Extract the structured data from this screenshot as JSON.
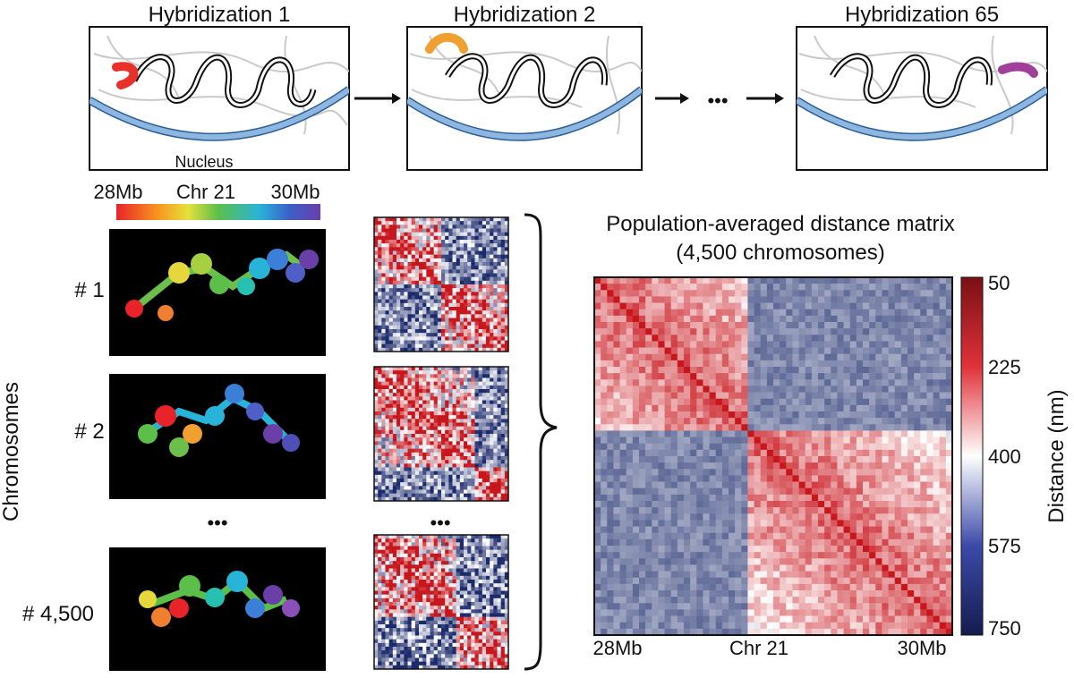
{
  "hybridization_panels": [
    {
      "title": "Hybridization 1",
      "probe_color": "#e8312a"
    },
    {
      "title": "Hybridization 2",
      "probe_color": "#f0a030"
    },
    {
      "title": "Hybridization 65",
      "probe_color": "#a0409a"
    }
  ],
  "nucleus_label": "Nucleus",
  "ellipsis": "•••",
  "colorbar": {
    "left_label": "28Mb",
    "center_label": "Chr 21",
    "right_label": "30Mb"
  },
  "chromosomes": {
    "axis_label": "Chromosomes",
    "rows": [
      {
        "label": "# 1"
      },
      {
        "label": "# 2"
      },
      {
        "label": "# 4,500"
      }
    ]
  },
  "matrix": {
    "title_line1": "Population-averaged distance matrix",
    "title_line2": "(4,500 chromosomes)",
    "x_left": "28Mb",
    "x_center": "Chr 21",
    "x_right": "30Mb",
    "scale_label": "Distance (nm)",
    "scale_ticks": [
      "50",
      "225",
      "400",
      "575",
      "750"
    ]
  },
  "colors": {
    "near": "#c8161d",
    "mid": "#ffffff",
    "far": "#1b2a6b",
    "membrane": "#7fa8d8"
  }
}
